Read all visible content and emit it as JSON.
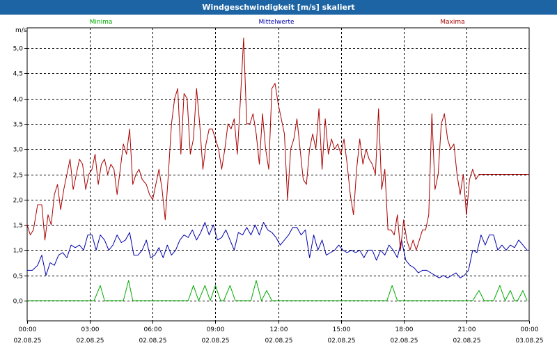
{
  "window": {
    "title": "Windgeschwindigkeit [m/s] skaliert"
  },
  "chart_data": {
    "type": "line",
    "title": "Windgeschwindigkeit [m/s] skaliert",
    "ylabel": "m/s",
    "ylim": [
      -0.4,
      5.4
    ],
    "xlim": [
      0,
      24
    ],
    "grid": true,
    "legend_placement": "top",
    "y_ticks": [
      "0,0",
      "0,5",
      "1,0",
      "1,5",
      "2,0",
      "2,5",
      "3,0",
      "3,5",
      "4,0",
      "4,5",
      "5,0"
    ],
    "y_tick_values": [
      0,
      0.5,
      1,
      1.5,
      2,
      2.5,
      3,
      3.5,
      4,
      4.5,
      5
    ],
    "x_ticks": [
      {
        "time": "00:00",
        "date": "02.08.25",
        "h": 0
      },
      {
        "time": "03:00",
        "date": "02.08.25",
        "h": 3
      },
      {
        "time": "06:00",
        "date": "02.08.25",
        "h": 6
      },
      {
        "time": "09:00",
        "date": "02.08.25",
        "h": 9
      },
      {
        "time": "12:00",
        "date": "02.08.25",
        "h": 12
      },
      {
        "time": "15:00",
        "date": "02.08.25",
        "h": 15
      },
      {
        "time": "18:00",
        "date": "02.08.25",
        "h": 18
      },
      {
        "time": "21:00",
        "date": "02.08.25",
        "h": 21
      },
      {
        "time": "00:00",
        "date": "03.08.25",
        "h": 24
      }
    ],
    "series": [
      {
        "name": "Minima",
        "color": "#00aa00",
        "points": [
          [
            0,
            0
          ],
          [
            3.2,
            0
          ],
          [
            3.5,
            0.3
          ],
          [
            3.7,
            0
          ],
          [
            4.6,
            0
          ],
          [
            4.85,
            0.4
          ],
          [
            5.05,
            0
          ],
          [
            7.7,
            0
          ],
          [
            7.95,
            0.3
          ],
          [
            8.2,
            0
          ],
          [
            8.5,
            0.3
          ],
          [
            8.75,
            0
          ],
          [
            9.0,
            0.3
          ],
          [
            9.25,
            0
          ],
          [
            9.4,
            0
          ],
          [
            9.7,
            0.3
          ],
          [
            9.95,
            0
          ],
          [
            10.7,
            0
          ],
          [
            10.95,
            0.4
          ],
          [
            11.2,
            0
          ],
          [
            11.45,
            0.2
          ],
          [
            11.7,
            0
          ],
          [
            17.2,
            0
          ],
          [
            17.45,
            0.3
          ],
          [
            17.7,
            0
          ],
          [
            21.3,
            0
          ],
          [
            21.6,
            0.2
          ],
          [
            21.85,
            0
          ],
          [
            22.3,
            0
          ],
          [
            22.6,
            0.3
          ],
          [
            22.85,
            0
          ],
          [
            23.1,
            0.2
          ],
          [
            23.3,
            0
          ],
          [
            23.45,
            0
          ],
          [
            23.7,
            0.2
          ],
          [
            23.9,
            0
          ]
        ]
      },
      {
        "name": "Mittelwerte",
        "color": "#0000aa",
        "points": [
          [
            0,
            0.6
          ],
          [
            0.25,
            0.6
          ],
          [
            0.5,
            0.7
          ],
          [
            0.7,
            0.9
          ],
          [
            0.9,
            0.5
          ],
          [
            1.1,
            0.75
          ],
          [
            1.3,
            0.7
          ],
          [
            1.5,
            0.9
          ],
          [
            1.7,
            0.95
          ],
          [
            1.9,
            0.85
          ],
          [
            2.1,
            1.1
          ],
          [
            2.3,
            1.05
          ],
          [
            2.5,
            1.1
          ],
          [
            2.7,
            1.0
          ],
          [
            2.9,
            1.3
          ],
          [
            3.1,
            1.3
          ],
          [
            3.3,
            1.0
          ],
          [
            3.5,
            1.3
          ],
          [
            3.7,
            1.2
          ],
          [
            3.9,
            1.0
          ],
          [
            4.1,
            1.1
          ],
          [
            4.3,
            1.3
          ],
          [
            4.5,
            1.15
          ],
          [
            4.7,
            1.2
          ],
          [
            4.9,
            1.35
          ],
          [
            5.1,
            0.9
          ],
          [
            5.3,
            0.9
          ],
          [
            5.5,
            1.0
          ],
          [
            5.7,
            1.2
          ],
          [
            5.9,
            0.85
          ],
          [
            6.1,
            0.9
          ],
          [
            6.3,
            1.05
          ],
          [
            6.5,
            0.85
          ],
          [
            6.7,
            1.1
          ],
          [
            6.9,
            0.9
          ],
          [
            7.1,
            1.0
          ],
          [
            7.3,
            1.2
          ],
          [
            7.5,
            1.3
          ],
          [
            7.7,
            1.25
          ],
          [
            7.9,
            1.4
          ],
          [
            8.1,
            1.2
          ],
          [
            8.3,
            1.35
          ],
          [
            8.5,
            1.55
          ],
          [
            8.7,
            1.3
          ],
          [
            8.9,
            1.5
          ],
          [
            9.1,
            1.2
          ],
          [
            9.3,
            1.25
          ],
          [
            9.5,
            1.4
          ],
          [
            9.7,
            1.2
          ],
          [
            9.9,
            1.0
          ],
          [
            10.1,
            1.35
          ],
          [
            10.3,
            1.3
          ],
          [
            10.5,
            1.45
          ],
          [
            10.7,
            1.3
          ],
          [
            10.9,
            1.5
          ],
          [
            11.1,
            1.3
          ],
          [
            11.3,
            1.55
          ],
          [
            11.5,
            1.4
          ],
          [
            11.7,
            1.35
          ],
          [
            11.9,
            1.25
          ],
          [
            12.1,
            1.1
          ],
          [
            12.3,
            1.2
          ],
          [
            12.5,
            1.3
          ],
          [
            12.7,
            1.45
          ],
          [
            12.9,
            1.45
          ],
          [
            13.1,
            1.3
          ],
          [
            13.3,
            1.4
          ],
          [
            13.5,
            0.85
          ],
          [
            13.7,
            1.3
          ],
          [
            13.9,
            1.0
          ],
          [
            14.1,
            1.2
          ],
          [
            14.3,
            0.9
          ],
          [
            14.5,
            0.95
          ],
          [
            14.7,
            1.0
          ],
          [
            14.9,
            1.1
          ],
          [
            15.1,
            1.0
          ],
          [
            15.3,
            0.95
          ],
          [
            15.5,
            1.0
          ],
          [
            15.7,
            0.95
          ],
          [
            15.9,
            1.0
          ],
          [
            16.1,
            0.85
          ],
          [
            16.3,
            1.0
          ],
          [
            16.5,
            1.0
          ],
          [
            16.7,
            0.8
          ],
          [
            16.9,
            1.0
          ],
          [
            17.1,
            0.9
          ],
          [
            17.3,
            1.1
          ],
          [
            17.5,
            1.0
          ],
          [
            17.7,
            0.85
          ],
          [
            17.9,
            1.2
          ],
          [
            18.1,
            0.8
          ],
          [
            18.3,
            0.7
          ],
          [
            18.5,
            0.65
          ],
          [
            18.7,
            0.55
          ],
          [
            18.9,
            0.6
          ],
          [
            19.1,
            0.6
          ],
          [
            19.3,
            0.55
          ],
          [
            19.5,
            0.5
          ],
          [
            19.7,
            0.45
          ],
          [
            19.9,
            0.5
          ],
          [
            20.1,
            0.45
          ],
          [
            20.3,
            0.5
          ],
          [
            20.5,
            0.55
          ],
          [
            20.7,
            0.45
          ],
          [
            20.9,
            0.5
          ],
          [
            21.1,
            0.6
          ],
          [
            21.3,
            1.0
          ],
          [
            21.5,
            0.95
          ],
          [
            21.7,
            1.3
          ],
          [
            21.9,
            1.1
          ],
          [
            22.1,
            1.3
          ],
          [
            22.3,
            1.3
          ],
          [
            22.5,
            1.0
          ],
          [
            22.7,
            1.1
          ],
          [
            22.9,
            1.0
          ],
          [
            23.1,
            1.1
          ],
          [
            23.3,
            1.05
          ],
          [
            23.5,
            1.2
          ],
          [
            23.7,
            1.1
          ],
          [
            23.9,
            1.0
          ],
          [
            24,
            1.0
          ]
        ]
      },
      {
        "name": "Maxima",
        "color": "#aa0000",
        "points": [
          [
            0,
            1.5
          ],
          [
            0.15,
            1.3
          ],
          [
            0.3,
            1.4
          ],
          [
            0.5,
            1.9
          ],
          [
            0.7,
            1.9
          ],
          [
            0.85,
            1.2
          ],
          [
            1.0,
            1.7
          ],
          [
            1.15,
            1.5
          ],
          [
            1.3,
            2.1
          ],
          [
            1.45,
            2.3
          ],
          [
            1.6,
            1.8
          ],
          [
            1.75,
            2.2
          ],
          [
            1.9,
            2.5
          ],
          [
            2.05,
            2.8
          ],
          [
            2.2,
            2.2
          ],
          [
            2.35,
            2.5
          ],
          [
            2.5,
            2.8
          ],
          [
            2.65,
            2.7
          ],
          [
            2.8,
            2.2
          ],
          [
            2.95,
            2.5
          ],
          [
            3.1,
            2.6
          ],
          [
            3.25,
            2.9
          ],
          [
            3.4,
            2.3
          ],
          [
            3.55,
            2.7
          ],
          [
            3.7,
            2.8
          ],
          [
            3.85,
            2.5
          ],
          [
            4.0,
            2.7
          ],
          [
            4.15,
            2.6
          ],
          [
            4.3,
            2.1
          ],
          [
            4.45,
            2.6
          ],
          [
            4.6,
            3.1
          ],
          [
            4.75,
            2.9
          ],
          [
            4.9,
            3.4
          ],
          [
            5.05,
            2.3
          ],
          [
            5.2,
            2.5
          ],
          [
            5.35,
            2.6
          ],
          [
            5.5,
            2.4
          ],
          [
            5.7,
            2.3
          ],
          [
            5.85,
            2.1
          ],
          [
            6.0,
            2.0
          ],
          [
            6.15,
            2.3
          ],
          [
            6.3,
            2.6
          ],
          [
            6.45,
            2.2
          ],
          [
            6.6,
            1.6
          ],
          [
            6.75,
            2.5
          ],
          [
            6.9,
            3.5
          ],
          [
            7.05,
            4.0
          ],
          [
            7.2,
            4.2
          ],
          [
            7.35,
            2.9
          ],
          [
            7.5,
            4.1
          ],
          [
            7.65,
            4.0
          ],
          [
            7.8,
            2.9
          ],
          [
            7.95,
            3.2
          ],
          [
            8.1,
            4.2
          ],
          [
            8.25,
            3.5
          ],
          [
            8.4,
            2.6
          ],
          [
            8.55,
            3.1
          ],
          [
            8.7,
            3.4
          ],
          [
            8.85,
            3.4
          ],
          [
            9.0,
            3.2
          ],
          [
            9.15,
            3.0
          ],
          [
            9.3,
            2.6
          ],
          [
            9.45,
            3.0
          ],
          [
            9.6,
            3.5
          ],
          [
            9.75,
            3.4
          ],
          [
            9.9,
            3.6
          ],
          [
            10.05,
            2.9
          ],
          [
            10.2,
            4.0
          ],
          [
            10.35,
            5.2
          ],
          [
            10.5,
            3.5
          ],
          [
            10.65,
            3.5
          ],
          [
            10.8,
            3.7
          ],
          [
            10.95,
            3.3
          ],
          [
            11.1,
            2.7
          ],
          [
            11.25,
            3.7
          ],
          [
            11.4,
            3.0
          ],
          [
            11.55,
            2.6
          ],
          [
            11.7,
            4.2
          ],
          [
            11.85,
            4.3
          ],
          [
            12.0,
            3.9
          ],
          [
            12.15,
            3.6
          ],
          [
            12.3,
            3.3
          ],
          [
            12.45,
            2.0
          ],
          [
            12.6,
            3.0
          ],
          [
            12.75,
            3.2
          ],
          [
            12.9,
            3.6
          ],
          [
            13.05,
            3.0
          ],
          [
            13.2,
            2.4
          ],
          [
            13.35,
            2.3
          ],
          [
            13.5,
            3.0
          ],
          [
            13.65,
            3.3
          ],
          [
            13.8,
            3.0
          ],
          [
            13.95,
            3.8
          ],
          [
            14.1,
            2.6
          ],
          [
            14.25,
            3.6
          ],
          [
            14.4,
            2.9
          ],
          [
            14.55,
            3.2
          ],
          [
            14.7,
            3.0
          ],
          [
            14.85,
            3.1
          ],
          [
            15.0,
            2.9
          ],
          [
            15.15,
            3.2
          ],
          [
            15.3,
            2.7
          ],
          [
            15.45,
            2.1
          ],
          [
            15.6,
            1.7
          ],
          [
            15.75,
            2.6
          ],
          [
            15.9,
            3.2
          ],
          [
            16.05,
            2.7
          ],
          [
            16.2,
            3.0
          ],
          [
            16.35,
            2.8
          ],
          [
            16.5,
            2.7
          ],
          [
            16.65,
            2.5
          ],
          [
            16.8,
            3.8
          ],
          [
            16.95,
            2.2
          ],
          [
            17.1,
            2.6
          ],
          [
            17.25,
            1.4
          ],
          [
            17.4,
            1.4
          ],
          [
            17.55,
            1.3
          ],
          [
            17.7,
            1.7
          ],
          [
            17.85,
            1.0
          ],
          [
            18.0,
            1.6
          ],
          [
            18.15,
            1.2
          ],
          [
            18.3,
            1.0
          ],
          [
            18.45,
            1.2
          ],
          [
            18.6,
            1.0
          ],
          [
            18.75,
            1.2
          ],
          [
            18.9,
            1.4
          ],
          [
            19.05,
            1.4
          ],
          [
            19.2,
            1.7
          ],
          [
            19.35,
            3.7
          ],
          [
            19.5,
            2.2
          ],
          [
            19.65,
            2.5
          ],
          [
            19.8,
            3.5
          ],
          [
            19.95,
            3.7
          ],
          [
            20.1,
            3.2
          ],
          [
            20.25,
            3.0
          ],
          [
            20.4,
            3.1
          ],
          [
            20.55,
            2.5
          ],
          [
            20.7,
            2.1
          ],
          [
            20.85,
            2.5
          ],
          [
            21.0,
            1.7
          ],
          [
            21.15,
            2.4
          ],
          [
            21.3,
            2.6
          ],
          [
            21.45,
            2.4
          ],
          [
            21.6,
            2.5
          ],
          [
            24,
            2.5
          ]
        ]
      }
    ]
  }
}
